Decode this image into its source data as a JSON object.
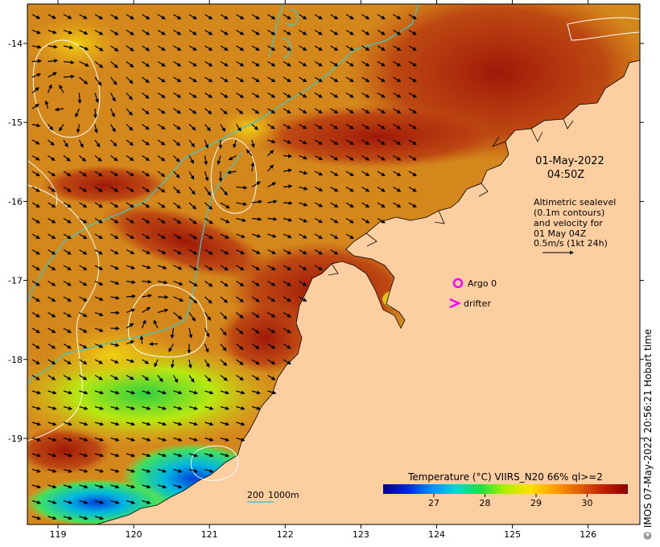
{
  "x_ticks": [
    "119",
    "120",
    "121",
    "122",
    "123",
    "124",
    "125",
    "126"
  ],
  "y_ticks": [
    "-14",
    "-15",
    "-16",
    "-17",
    "-18",
    "-19"
  ],
  "timestamp": {
    "date": "01-May-2022",
    "time": "04:50Z"
  },
  "altimetry_note": [
    "Altimetric sealevel",
    "(0.1m contours)",
    "and velocity for",
    "01 May 04Z",
    "0.5m/s (1kt 24h)"
  ],
  "legend": {
    "argo_label": "Argo 0",
    "drifter_label": "drifter",
    "argo_marker": "circle-icon",
    "drifter_marker": "chevron-icon"
  },
  "depth_scale": {
    "label_200": "200",
    "label_1000": "1000m"
  },
  "colorbar": {
    "title": "Temperature (°C) VIIRS_N20 66% ql>=2",
    "ticks": [
      "27",
      "28",
      "29",
      "30"
    ],
    "stops": [
      "#08008a",
      "#0028d8",
      "#0090ff",
      "#00d8d0",
      "#20e040",
      "#b0f000",
      "#ffe000",
      "#ffa000",
      "#e06000",
      "#c02000",
      "#8a0000"
    ]
  },
  "credit": "© IMOS 07-May-2022 20:56:21 Hobart time",
  "colors": {
    "land": "#fdcea0",
    "coast": "#000000",
    "contour": "#ffffff",
    "isobath": "#3cc8c8",
    "argo": "#ff00ff",
    "drifter": "#ff00ff",
    "sst_warm": "#d08418",
    "sst_hot": "#a81808",
    "sst_cool": "#e8cc10"
  }
}
